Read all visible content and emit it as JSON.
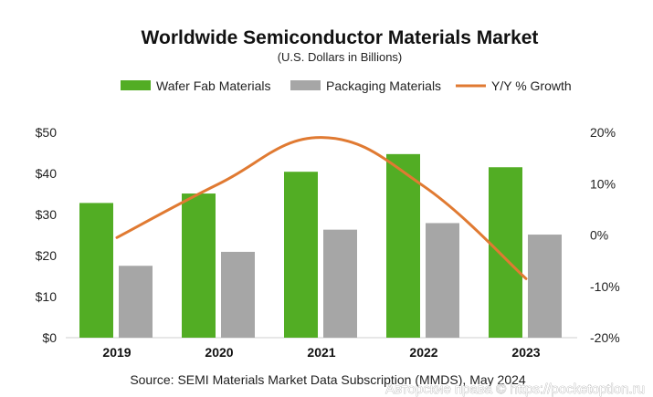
{
  "chart_data": {
    "type": "bar",
    "title": "Worldwide Semiconductor Materials Market",
    "subtitle": "(U.S. Dollars in Billions)",
    "categories": [
      "2019",
      "2020",
      "2021",
      "2022",
      "2023"
    ],
    "series": [
      {
        "name": "Wafer Fab Materials",
        "kind": "bar",
        "axis": "left",
        "color": "#52ad24",
        "values": [
          32.8,
          35.1,
          40.4,
          44.7,
          41.5
        ]
      },
      {
        "name": "Packaging  Materials",
        "kind": "bar",
        "axis": "left",
        "color": "#a6a6a6",
        "values": [
          17.5,
          20.9,
          26.3,
          27.9,
          25.1
        ]
      },
      {
        "name": "Y/Y % Growth",
        "kind": "line",
        "axis": "right",
        "color": "#e07a32",
        "values": [
          -0.5,
          10.0,
          19.0,
          9.5,
          -8.5
        ]
      }
    ],
    "y_left": {
      "ylim": [
        0,
        50
      ],
      "ticks": [
        0,
        10,
        20,
        30,
        40,
        50
      ],
      "tick_labels": [
        "$0",
        "$10",
        "$20",
        "$30",
        "$40",
        "$50"
      ]
    },
    "y_right": {
      "ylim": [
        -20,
        20
      ],
      "ticks": [
        -20,
        -10,
        0,
        10,
        20
      ],
      "tick_labels": [
        "-20%",
        "-10%",
        "0%",
        "10%",
        "20%"
      ]
    },
    "legend": "top",
    "grid": false,
    "source": "Source:  SEMI Materials Market Data Subscription (MMDS), May 2024",
    "watermark": "Авторские права © https://pocketoption.ru"
  }
}
